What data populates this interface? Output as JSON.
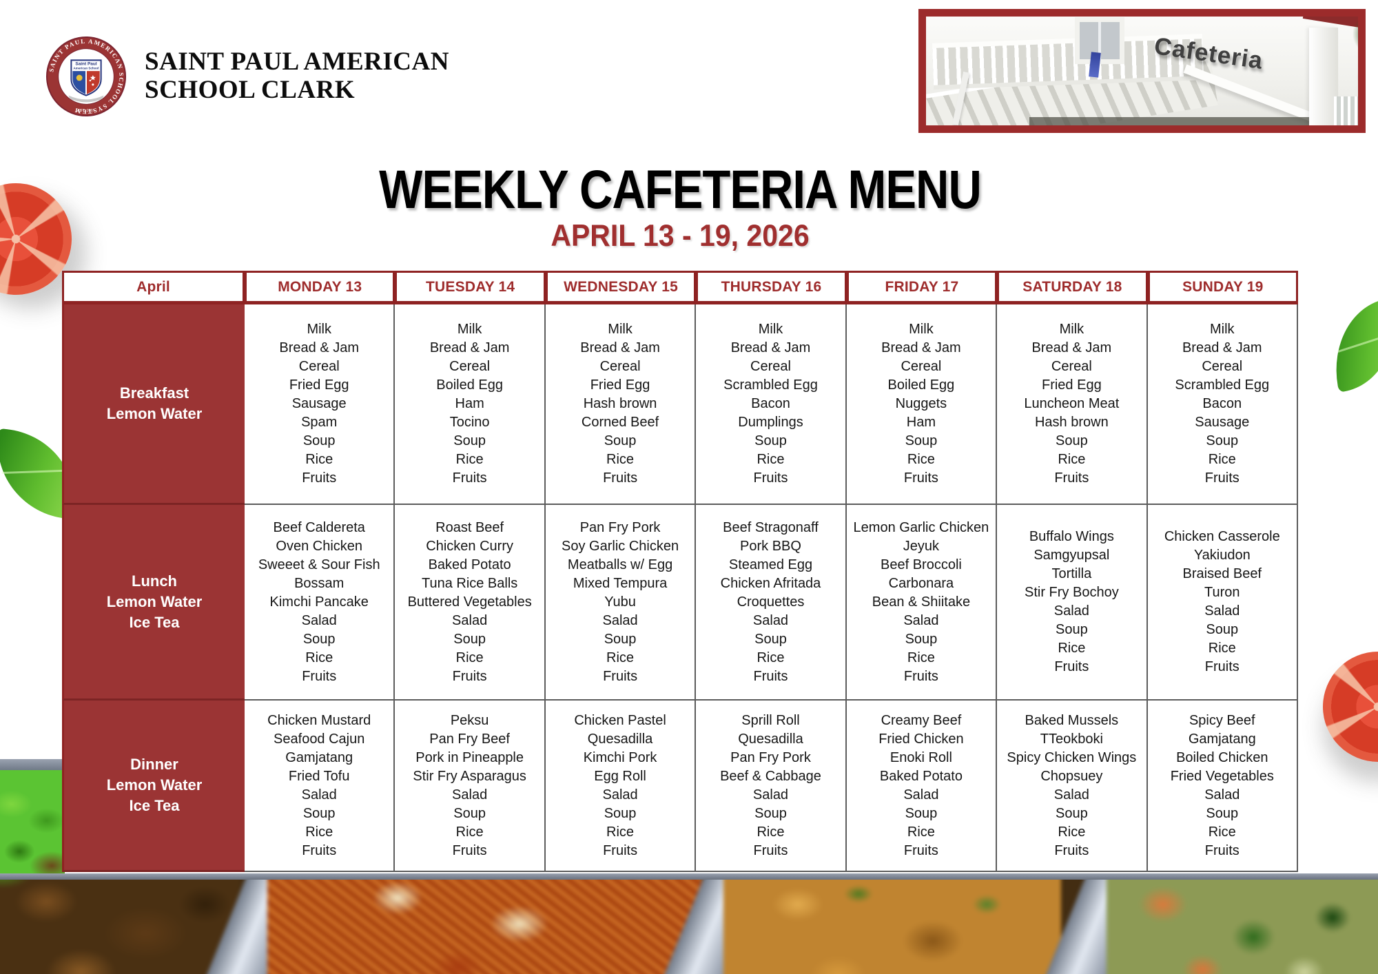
{
  "school": {
    "name_line1": "SAINT PAUL AMERICAN",
    "name_line2": "SCHOOL CLARK",
    "seal_ring_text": "SAINT PAUL AMERICAN SCHOOL SYSTEM",
    "seal_shield_line1": "Saint Paul",
    "seal_shield_line2": "American School",
    "seal_est": "EST. 2003"
  },
  "photo": {
    "caption": "Cafeteria"
  },
  "title": "WEEKLY CAFETERIA MENU",
  "subtitle": "APRIL 13 - 19, 2026",
  "colors": {
    "accent_maroon": "#9b3434",
    "header_text_red": "#9e2c2c",
    "subtitle_red": "#a02f2f",
    "frame_maroon": "#9c2b2b"
  },
  "table": {
    "corner_label": "April",
    "day_headers": [
      "MONDAY 13",
      "TUESDAY 14",
      "WEDNESDAY 15",
      "THURSDAY 16",
      "FRIDAY 17",
      "SATURDAY 18",
      "SUNDAY 19"
    ],
    "rows": [
      {
        "label_lines": [
          "Breakfast",
          "Lemon Water"
        ],
        "cells": [
          [
            "Milk",
            "Bread & Jam",
            "Cereal",
            "Fried Egg",
            "Sausage",
            "Spam",
            "Soup",
            "Rice",
            "Fruits"
          ],
          [
            "Milk",
            "Bread & Jam",
            "Cereal",
            "Boiled Egg",
            "Ham",
            "Tocino",
            "Soup",
            "Rice",
            "Fruits"
          ],
          [
            "Milk",
            "Bread & Jam",
            "Cereal",
            "Fried Egg",
            "Hash brown",
            "Corned Beef",
            "Soup",
            "Rice",
            "Fruits"
          ],
          [
            "Milk",
            "Bread & Jam",
            "Cereal",
            "Scrambled Egg",
            "Bacon",
            "Dumplings",
            "Soup",
            "Rice",
            "Fruits"
          ],
          [
            "Milk",
            "Bread & Jam",
            "Cereal",
            "Boiled Egg",
            "Nuggets",
            "Ham",
            "Soup",
            "Rice",
            "Fruits"
          ],
          [
            "Milk",
            "Bread & Jam",
            "Cereal",
            "Fried Egg",
            "Luncheon Meat",
            "Hash brown",
            "Soup",
            "Rice",
            "Fruits"
          ],
          [
            "Milk",
            "Bread & Jam",
            "Cereal",
            "Scrambled Egg",
            "Bacon",
            "Sausage",
            "Soup",
            "Rice",
            "Fruits"
          ]
        ]
      },
      {
        "label_lines": [
          "Lunch",
          "Lemon Water",
          "Ice Tea"
        ],
        "cells": [
          [
            "Beef Caldereta",
            "Oven Chicken",
            "Sweeet & Sour Fish",
            "Bossam",
            "Kimchi Pancake",
            "Salad",
            "Soup",
            "Rice",
            "Fruits"
          ],
          [
            "Roast Beef",
            "Chicken Curry",
            "Baked Potato",
            "Tuna Rice Balls",
            "Buttered Vegetables",
            "Salad",
            "Soup",
            "Rice",
            "Fruits"
          ],
          [
            "Pan Fry Pork",
            "Soy Garlic Chicken",
            "Meatballs w/ Egg",
            "Mixed Tempura",
            "Yubu",
            "Salad",
            "Soup",
            "Rice",
            "Fruits"
          ],
          [
            "Beef Stragonaff",
            "Pork BBQ",
            "Steamed Egg",
            "Chicken Afritada",
            "Croquettes",
            "Salad",
            "Soup",
            "Rice",
            "Fruits"
          ],
          [
            "Lemon Garlic Chicken",
            "Jeyuk",
            "Beef Broccoli",
            "Carbonara",
            "Bean & Shiitake",
            "Salad",
            "Soup",
            "Rice",
            "Fruits"
          ],
          [
            "Buffalo Wings",
            "Samgyupsal",
            "Tortilla",
            "Stir Fry Bochoy",
            "Salad",
            "Soup",
            "Rice",
            "Fruits"
          ],
          [
            "Chicken Casserole",
            "Yakiudon",
            "Braised Beef",
            "Turon",
            "Salad",
            "Soup",
            "Rice",
            "Fruits"
          ]
        ]
      },
      {
        "label_lines": [
          "Dinner",
          "Lemon Water",
          "Ice Tea"
        ],
        "cells": [
          [
            "Chicken Mustard",
            "Seafood Cajun",
            "Gamjatang",
            "Fried Tofu",
            "Salad",
            "Soup",
            "Rice",
            "Fruits"
          ],
          [
            "Peksu",
            "Pan Fry Beef",
            "Pork in Pineapple",
            "Stir Fry Asparagus",
            "Salad",
            "Soup",
            "Rice",
            "Fruits"
          ],
          [
            "Chicken Pastel",
            "Quesadilla",
            "Kimchi Pork",
            "Egg Roll",
            "Salad",
            "Soup",
            "Rice",
            "Fruits"
          ],
          [
            "Sprill Roll",
            "Quesadilla",
            "Pan Fry Pork",
            "Beef & Cabbage",
            "Salad",
            "Soup",
            "Rice",
            "Fruits"
          ],
          [
            "Creamy Beef",
            "Fried Chicken",
            "Enoki Roll",
            "Baked Potato",
            "Salad",
            "Soup",
            "Rice",
            "Fruits"
          ],
          [
            "Baked Mussels",
            "TTeokboki",
            "Spicy Chicken Wings",
            "Chopsuey",
            "Salad",
            "Soup",
            "Rice",
            "Fruits"
          ],
          [
            "Spicy Beef",
            "Gamjatang",
            "Boiled Chicken",
            "Fried Vegetables",
            "Salad",
            "Soup",
            "Rice",
            "Fruits"
          ]
        ]
      }
    ]
  }
}
